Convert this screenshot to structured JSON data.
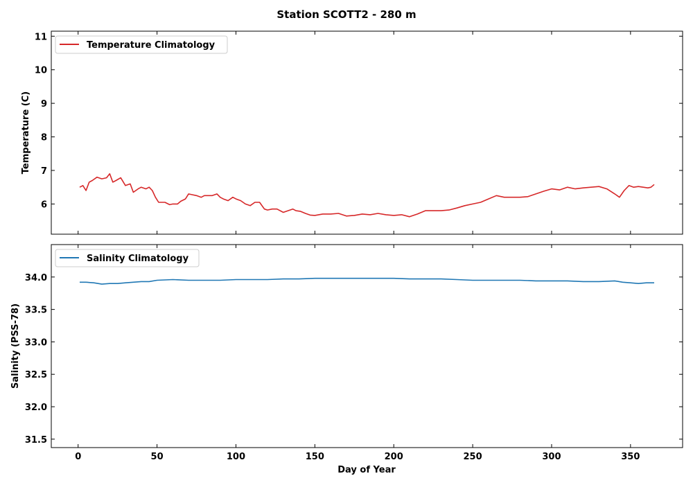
{
  "chart_data": [
    {
      "type": "line",
      "title": "Station SCOTT2 - 280 m",
      "xlabel": "",
      "ylabel": "Temperature (C)",
      "xlim": [
        -17,
        383
      ],
      "ylim": [
        5.1,
        11.15
      ],
      "xticks": [
        0,
        50,
        100,
        150,
        200,
        250,
        300,
        350
      ],
      "yticks": [
        6,
        7,
        8,
        9,
        10,
        11
      ],
      "legend_position": "top-left",
      "series": [
        {
          "name": "Temperature Climatology",
          "color": "#d62728",
          "x": [
            1,
            3,
            5,
            7,
            9,
            12,
            15,
            18,
            20,
            22,
            24,
            27,
            30,
            33,
            35,
            38,
            40,
            43,
            45,
            47,
            49,
            51,
            53,
            55,
            58,
            60,
            63,
            65,
            68,
            70,
            72,
            75,
            78,
            80,
            83,
            85,
            88,
            90,
            92,
            95,
            98,
            100,
            103,
            106,
            109,
            112,
            115,
            118,
            120,
            123,
            126,
            130,
            133,
            136,
            138,
            141,
            144,
            147,
            150,
            155,
            160,
            165,
            170,
            175,
            180,
            185,
            190,
            195,
            200,
            205,
            210,
            215,
            220,
            225,
            230,
            235,
            240,
            245,
            250,
            255,
            260,
            265,
            270,
            275,
            280,
            285,
            290,
            295,
            300,
            305,
            310,
            315,
            320,
            325,
            330,
            335,
            340,
            343,
            346,
            349,
            352,
            355,
            358,
            361,
            363,
            365
          ],
          "y": [
            6.5,
            6.55,
            6.4,
            6.65,
            6.7,
            6.8,
            6.75,
            6.78,
            6.9,
            6.65,
            6.7,
            6.78,
            6.55,
            6.6,
            6.35,
            6.45,
            6.5,
            6.45,
            6.5,
            6.4,
            6.2,
            6.05,
            6.05,
            6.05,
            5.98,
            6.0,
            6.0,
            6.08,
            6.15,
            6.3,
            6.28,
            6.25,
            6.2,
            6.25,
            6.25,
            6.25,
            6.3,
            6.2,
            6.15,
            6.1,
            6.2,
            6.15,
            6.1,
            6.0,
            5.95,
            6.05,
            6.05,
            5.85,
            5.82,
            5.85,
            5.85,
            5.75,
            5.8,
            5.85,
            5.8,
            5.78,
            5.72,
            5.67,
            5.66,
            5.7,
            5.7,
            5.72,
            5.64,
            5.66,
            5.7,
            5.68,
            5.72,
            5.68,
            5.66,
            5.68,
            5.62,
            5.7,
            5.8,
            5.8,
            5.8,
            5.82,
            5.88,
            5.95,
            6.0,
            6.05,
            6.15,
            6.25,
            6.2,
            6.2,
            6.2,
            6.22,
            6.3,
            6.38,
            6.45,
            6.42,
            6.5,
            6.45,
            6.48,
            6.5,
            6.52,
            6.45,
            6.3,
            6.2,
            6.4,
            6.55,
            6.5,
            6.52,
            6.5,
            6.48,
            6.5,
            6.58
          ]
        }
      ]
    },
    {
      "type": "line",
      "title": "",
      "xlabel": "Day of Year",
      "ylabel": "Salinity (PSS-78)",
      "xlim": [
        -17,
        383
      ],
      "ylim": [
        31.37,
        34.5
      ],
      "xticks": [
        0,
        50,
        100,
        150,
        200,
        250,
        300,
        350
      ],
      "yticks": [
        31.5,
        32.0,
        32.5,
        33.0,
        33.5,
        34.0
      ],
      "legend_position": "top-left",
      "series": [
        {
          "name": "Salinity Climatology",
          "color": "#1f77b4",
          "x": [
            1,
            5,
            10,
            15,
            20,
            25,
            30,
            35,
            40,
            45,
            50,
            60,
            70,
            80,
            90,
            100,
            110,
            120,
            130,
            140,
            150,
            160,
            170,
            180,
            190,
            200,
            210,
            220,
            230,
            240,
            250,
            260,
            270,
            280,
            290,
            300,
            310,
            320,
            330,
            340,
            345,
            350,
            355,
            360,
            365
          ],
          "y": [
            33.92,
            33.92,
            33.91,
            33.89,
            33.9,
            33.9,
            33.91,
            33.92,
            33.93,
            33.93,
            33.95,
            33.96,
            33.95,
            33.95,
            33.95,
            33.96,
            33.96,
            33.96,
            33.97,
            33.97,
            33.98,
            33.98,
            33.98,
            33.98,
            33.98,
            33.98,
            33.97,
            33.97,
            33.97,
            33.96,
            33.95,
            33.95,
            33.95,
            33.95,
            33.94,
            33.94,
            33.94,
            33.93,
            33.93,
            33.94,
            33.92,
            33.91,
            33.9,
            33.91,
            33.91
          ]
        }
      ]
    }
  ]
}
